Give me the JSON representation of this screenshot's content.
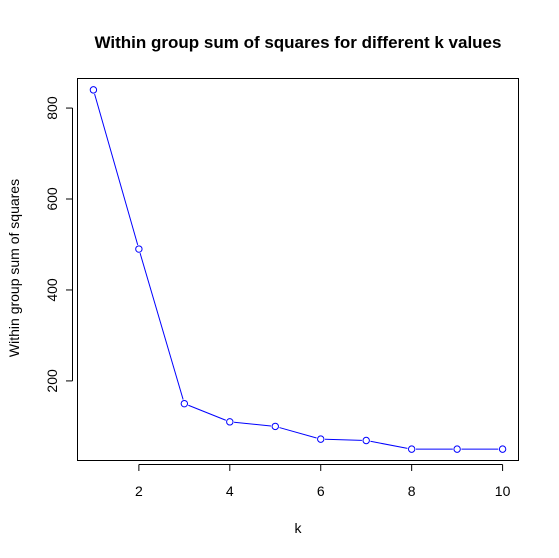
{
  "chart_data": {
    "type": "line",
    "title": "Within group sum of squares for different k values",
    "xlabel": "k",
    "ylabel": "Within group sum of squares",
    "x": [
      1,
      2,
      3,
      4,
      5,
      6,
      7,
      8,
      9,
      10
    ],
    "series": [
      {
        "values": [
          840,
          490,
          150,
          110,
          100,
          72,
          69,
          50,
          50,
          50
        ],
        "color": "#0000ff"
      }
    ],
    "xlim": [
      0.65,
      10.35
    ],
    "ylim": [
      25,
      865
    ],
    "xticks": [
      2,
      4,
      6,
      8,
      10
    ],
    "yticks": [
      200,
      400,
      600,
      800
    ],
    "grid": false,
    "legend": "none",
    "markers": "open-circle"
  }
}
